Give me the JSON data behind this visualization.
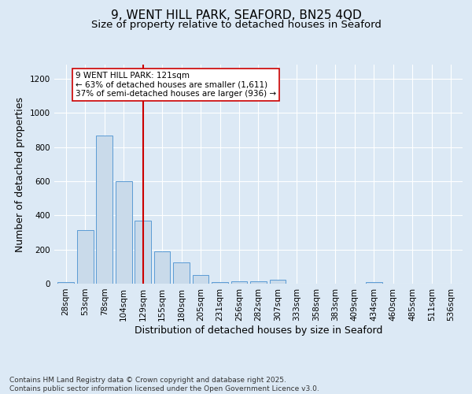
{
  "title_line1": "9, WENT HILL PARK, SEAFORD, BN25 4QD",
  "title_line2": "Size of property relative to detached houses in Seaford",
  "xlabel": "Distribution of detached houses by size in Seaford",
  "ylabel": "Number of detached properties",
  "categories": [
    "28sqm",
    "53sqm",
    "78sqm",
    "104sqm",
    "129sqm",
    "155sqm",
    "180sqm",
    "205sqm",
    "231sqm",
    "256sqm",
    "282sqm",
    "307sqm",
    "333sqm",
    "358sqm",
    "383sqm",
    "409sqm",
    "434sqm",
    "460sqm",
    "485sqm",
    "511sqm",
    "536sqm"
  ],
  "values": [
    10,
    315,
    865,
    600,
    370,
    190,
    125,
    50,
    10,
    12,
    12,
    25,
    0,
    0,
    0,
    0,
    8,
    0,
    0,
    0,
    0
  ],
  "bar_color": "#c9daea",
  "bar_edge_color": "#5b9bd5",
  "highlight_index": 4,
  "highlight_line_color": "#cc0000",
  "annotation_text": "9 WENT HILL PARK: 121sqm\n← 63% of detached houses are smaller (1,611)\n37% of semi-detached houses are larger (936) →",
  "annotation_box_color": "#ffffff",
  "annotation_box_edge": "#cc0000",
  "ylim": [
    0,
    1280
  ],
  "yticks": [
    0,
    200,
    400,
    600,
    800,
    1000,
    1200
  ],
  "background_color": "#dce9f5",
  "plot_bg_color": "#dce9f5",
  "footer_text": "Contains HM Land Registry data © Crown copyright and database right 2025.\nContains public sector information licensed under the Open Government Licence v3.0.",
  "title_fontsize": 11,
  "subtitle_fontsize": 9.5,
  "axis_label_fontsize": 9,
  "tick_fontsize": 7.5,
  "annotation_fontsize": 7.5,
  "footer_fontsize": 6.5
}
